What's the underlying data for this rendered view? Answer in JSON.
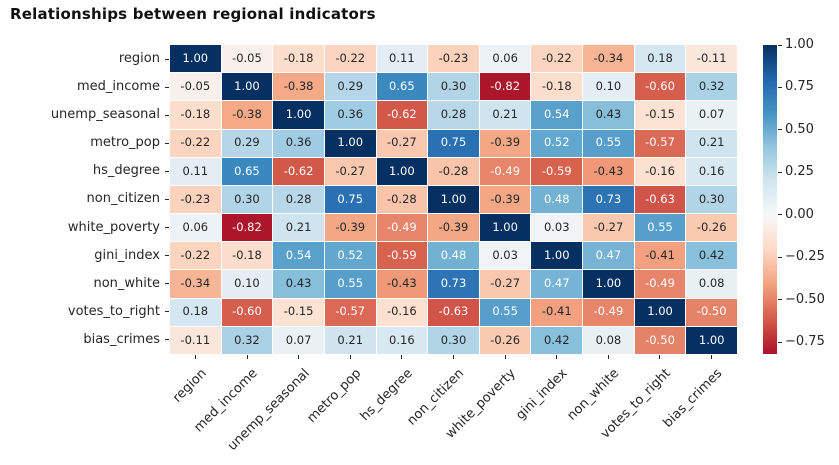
{
  "title": "Relationships between regional indicators",
  "chart_data": {
    "type": "heatmap",
    "title": "Relationships between regional indicators",
    "categories": [
      "region",
      "med_income",
      "unemp_seasonal",
      "metro_pop",
      "hs_degree",
      "non_citizen",
      "white_poverty",
      "gini_index",
      "non_white",
      "votes_to_right",
      "bias_crimes"
    ],
    "matrix": [
      [
        1.0,
        -0.05,
        -0.18,
        -0.22,
        0.11,
        -0.23,
        0.06,
        -0.22,
        -0.34,
        0.18,
        -0.11
      ],
      [
        -0.05,
        1.0,
        -0.38,
        0.29,
        0.65,
        0.3,
        -0.82,
        -0.18,
        0.1,
        -0.6,
        0.32
      ],
      [
        -0.18,
        -0.38,
        1.0,
        0.36,
        -0.62,
        0.28,
        0.21,
        0.54,
        0.43,
        -0.15,
        0.07
      ],
      [
        -0.22,
        0.29,
        0.36,
        1.0,
        -0.27,
        0.75,
        -0.39,
        0.52,
        0.55,
        -0.57,
        0.21
      ],
      [
        0.11,
        0.65,
        -0.62,
        -0.27,
        1.0,
        -0.28,
        -0.49,
        -0.59,
        -0.43,
        -0.16,
        0.16
      ],
      [
        -0.23,
        0.3,
        0.28,
        0.75,
        -0.28,
        1.0,
        -0.39,
        0.48,
        0.73,
        -0.63,
        0.3
      ],
      [
        0.06,
        -0.82,
        0.21,
        -0.39,
        -0.49,
        -0.39,
        1.0,
        0.03,
        -0.27,
        0.55,
        -0.26
      ],
      [
        -0.22,
        -0.18,
        0.54,
        0.52,
        -0.59,
        0.48,
        0.03,
        1.0,
        0.47,
        -0.41,
        0.42
      ],
      [
        -0.34,
        0.1,
        0.43,
        0.55,
        -0.43,
        0.73,
        -0.27,
        0.47,
        1.0,
        -0.49,
        0.08
      ],
      [
        0.18,
        -0.6,
        -0.15,
        -0.57,
        -0.16,
        -0.63,
        0.55,
        -0.41,
        -0.49,
        1.0,
        -0.5
      ],
      [
        -0.11,
        0.32,
        0.07,
        0.21,
        0.16,
        0.3,
        -0.26,
        0.42,
        0.08,
        -0.5,
        1.0
      ]
    ],
    "value_format": ".2f",
    "scale": {
      "vmin": -0.82,
      "vmax": 1.0,
      "center": 0
    },
    "colormap": {
      "name": "RdBu",
      "anchors": [
        "#67001f",
        "#b2182b",
        "#d6604d",
        "#f4a582",
        "#fddbc7",
        "#f7f7f7",
        "#d1e5f0",
        "#92c5de",
        "#4393c3",
        "#2166ac",
        "#053061"
      ]
    },
    "colorbar": {
      "position": "right",
      "tick_values": [
        1.0,
        0.75,
        0.5,
        0.25,
        0.0,
        -0.25,
        -0.5,
        -0.75
      ],
      "tick_labels": [
        "1.00",
        "0.75",
        "0.50",
        "0.25",
        "0.00",
        "−0.25",
        "−0.50",
        "−0.75"
      ]
    },
    "grid": "white hairlines between cells",
    "annotations": "each cell labeled with its correlation value"
  },
  "colors": {
    "background": "#ffffff",
    "title_text": "#111111",
    "tick_text": "#262626",
    "annot_dark": "#262626",
    "annot_light": "#ffffff"
  }
}
